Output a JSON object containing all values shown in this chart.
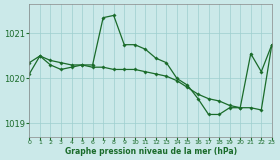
{
  "title": "Graphe pression niveau de la mer (hPa)",
  "bg_color": "#cbe9e9",
  "grid_color": "#9ecfcf",
  "line_color": "#1a6b2a",
  "xlim": [
    0,
    23
  ],
  "ylim": [
    1018.7,
    1021.65
  ],
  "yticks": [
    1019,
    1020,
    1021
  ],
  "xticks": [
    0,
    1,
    2,
    3,
    4,
    5,
    6,
    7,
    8,
    9,
    10,
    11,
    12,
    13,
    14,
    15,
    16,
    17,
    18,
    19,
    20,
    21,
    22,
    23
  ],
  "series1_x": [
    0,
    1,
    2,
    3,
    4,
    5,
    6,
    7,
    8,
    9,
    10,
    11,
    12,
    13,
    14,
    15,
    16,
    17,
    18,
    19,
    20,
    21,
    22,
    23
  ],
  "series1_y": [
    1020.1,
    1020.5,
    1020.3,
    1020.2,
    1020.25,
    1020.3,
    1020.3,
    1021.35,
    1021.4,
    1020.75,
    1020.75,
    1020.65,
    1020.45,
    1020.35,
    1020.0,
    1019.85,
    1019.55,
    1019.2,
    1019.2,
    1019.35,
    1019.35,
    1020.55,
    1020.15,
    1020.75
  ],
  "series2_x": [
    0,
    1,
    2,
    3,
    4,
    5,
    6,
    7,
    8,
    9,
    10,
    11,
    12,
    13,
    14,
    15,
    16,
    17,
    18,
    19,
    20,
    21,
    22,
    23
  ],
  "series2_y": [
    1020.35,
    1020.5,
    1020.4,
    1020.35,
    1020.3,
    1020.3,
    1020.25,
    1020.25,
    1020.2,
    1020.2,
    1020.2,
    1020.15,
    1020.1,
    1020.05,
    1019.95,
    1019.8,
    1019.65,
    1019.55,
    1019.5,
    1019.4,
    1019.35,
    1019.35,
    1019.3,
    1020.75
  ]
}
